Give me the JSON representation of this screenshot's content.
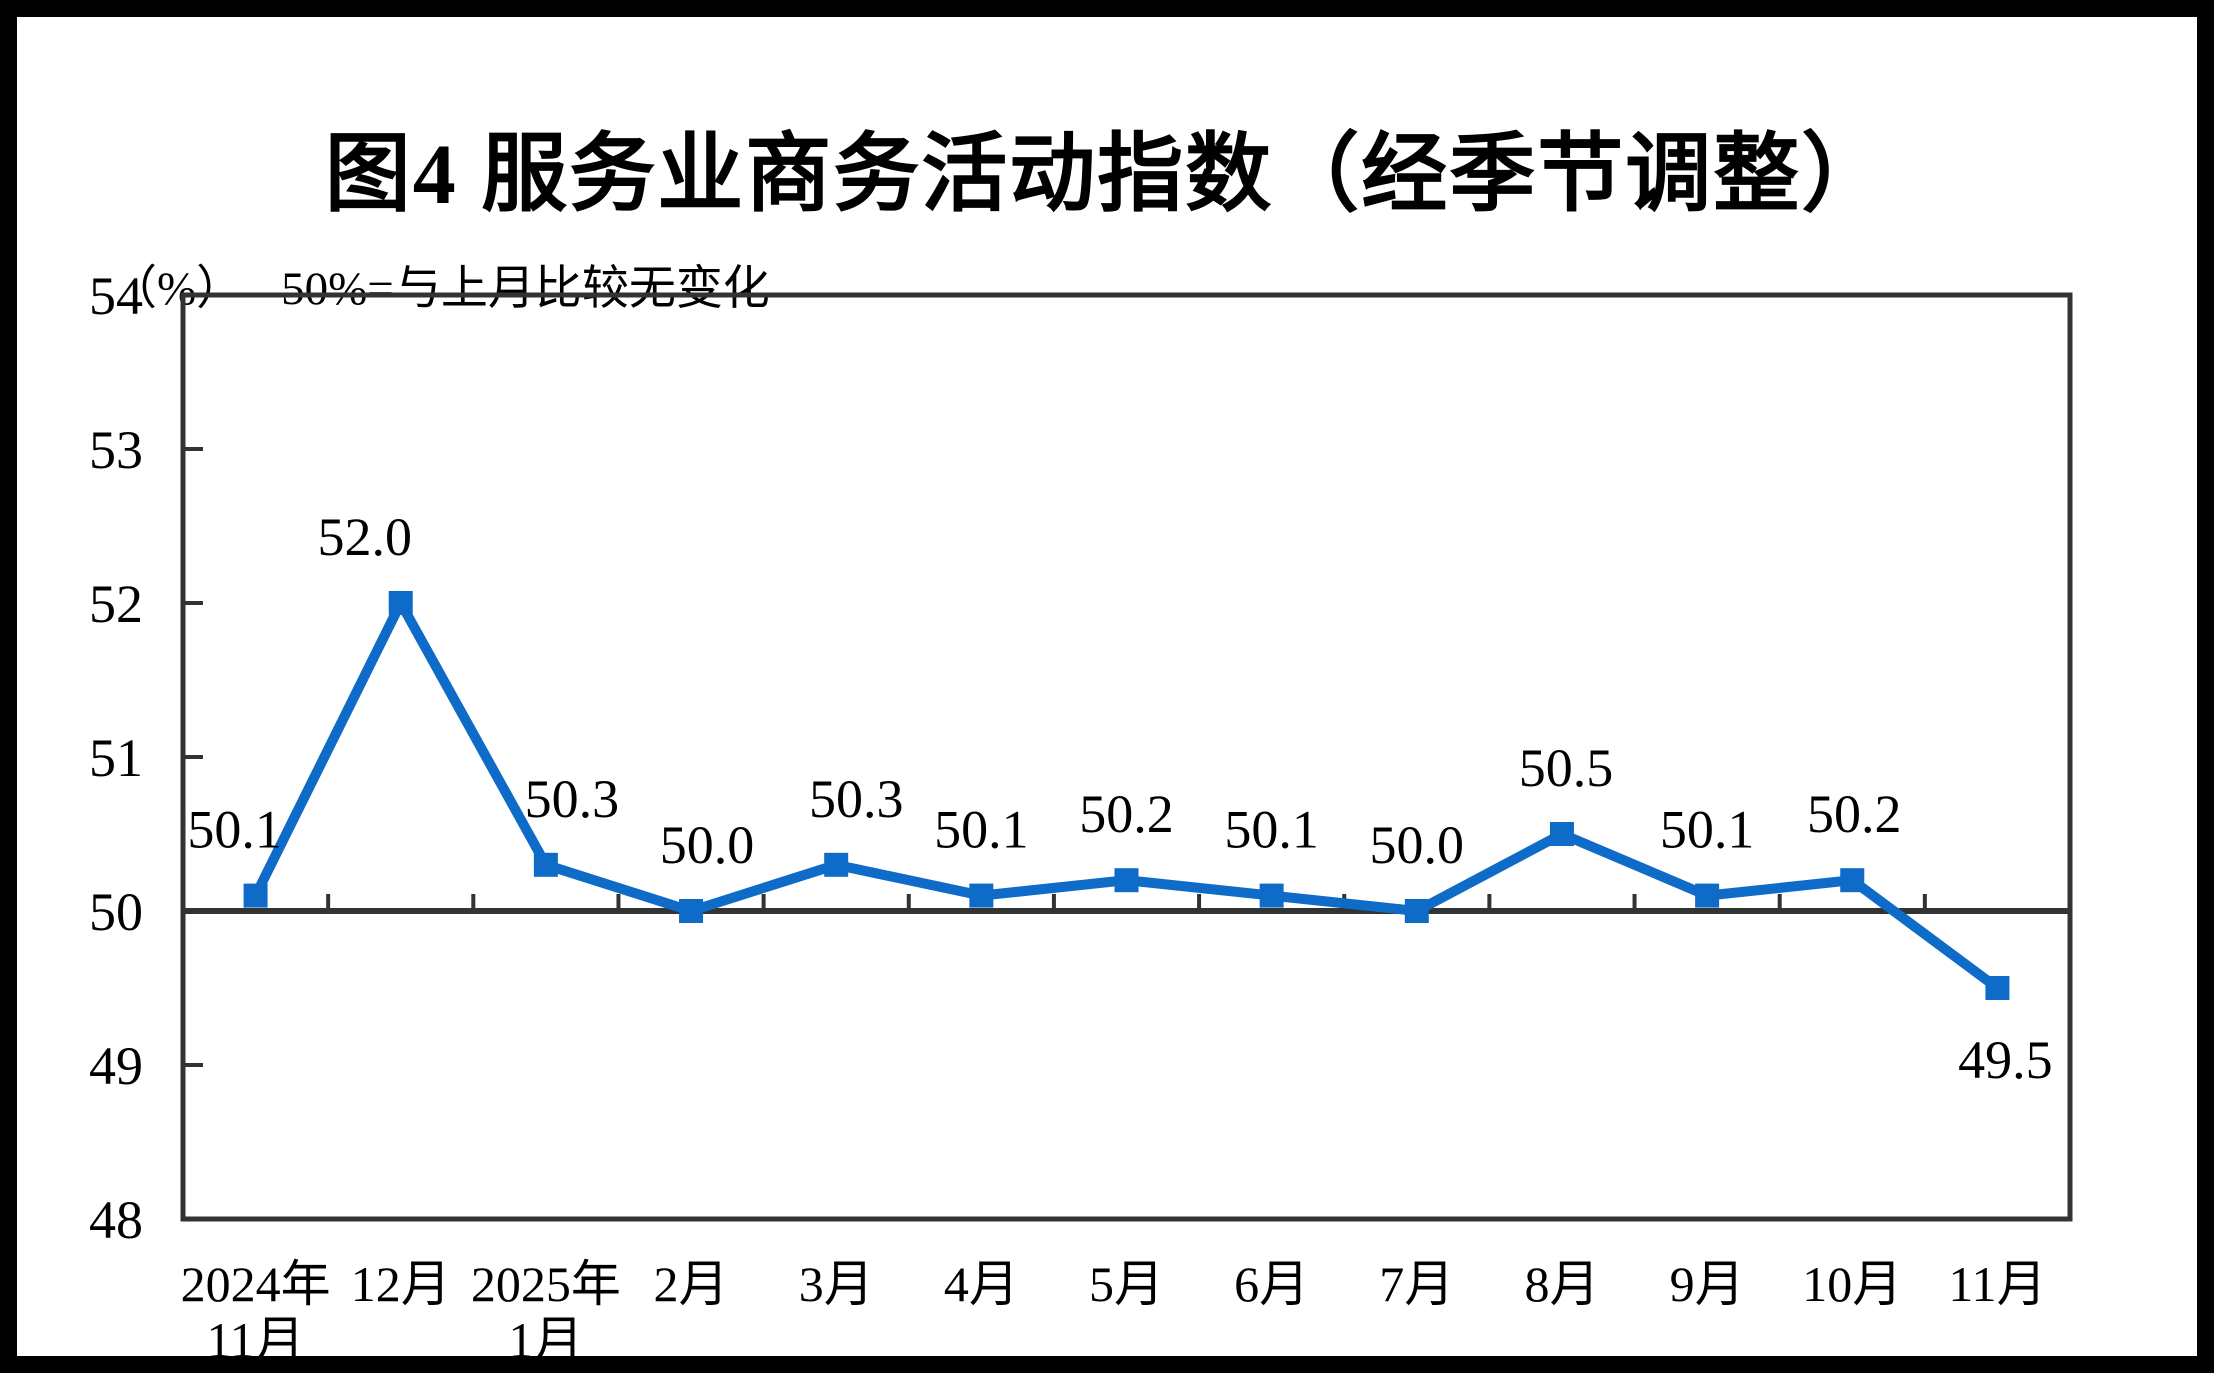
{
  "chart_data": {
    "type": "line",
    "title": "图4 服务业商务活动指数（经季节调整）",
    "unit_label": "（%）",
    "reference_note": "50%=与上月比较无变化",
    "categories": [
      [
        "2024年",
        "11月"
      ],
      [
        "12月"
      ],
      [
        "2025年",
        "1月"
      ],
      [
        "2月"
      ],
      [
        "3月"
      ],
      [
        "4月"
      ],
      [
        "5月"
      ],
      [
        "6月"
      ],
      [
        "7月"
      ],
      [
        "8月"
      ],
      [
        "9月"
      ],
      [
        "10月"
      ],
      [
        "11月"
      ]
    ],
    "values": [
      50.1,
      52.0,
      50.3,
      50.0,
      50.3,
      50.1,
      50.2,
      50.1,
      50.0,
      50.5,
      50.1,
      50.2,
      49.5
    ],
    "point_labels": [
      "50.1",
      "52.0",
      "50.3",
      "50.0",
      "50.3",
      "50.1",
      "50.2",
      "50.1",
      "50.0",
      "50.5",
      "50.1",
      "50.2",
      "49.5"
    ],
    "label_positions": [
      "above",
      "above",
      "above",
      "above",
      "above",
      "above",
      "above",
      "above",
      "above",
      "above",
      "above",
      "above",
      "below"
    ],
    "ylim": [
      48,
      54
    ],
    "yticks": [
      48,
      49,
      50,
      51,
      52,
      53,
      54
    ],
    "reference_value": 50,
    "series_name": "服务业商务活动指数",
    "series_color": "#0e6bc8",
    "axis_color": "#333333",
    "grid": false,
    "legend_position": "none",
    "marker": "square"
  }
}
